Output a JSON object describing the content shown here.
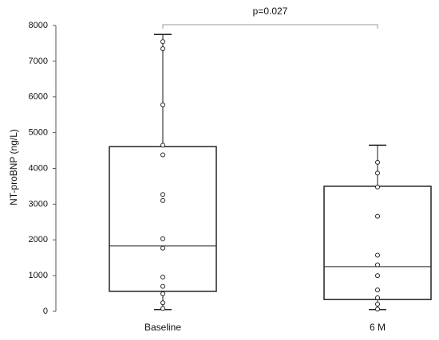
{
  "chart_data": {
    "type": "box",
    "y_label": "NT-proBNP (ng/L)",
    "annotation": "p=0.027",
    "categories": [
      "Baseline",
      "6 M"
    ],
    "ylim": [
      0,
      8000
    ],
    "yticks": [
      0,
      1000,
      2000,
      3000,
      4000,
      5000,
      6000,
      7000,
      8000
    ],
    "boxes": [
      {
        "whisker_low": 50,
        "q1": 560,
        "median": 1830,
        "q3": 4610,
        "whisker_high": 7750,
        "points": [
          7550,
          7350,
          5780,
          4650,
          4380,
          3270,
          3100,
          2030,
          1770,
          960,
          700,
          490,
          240,
          80
        ]
      },
      {
        "whisker_low": 50,
        "q1": 330,
        "median": 1250,
        "q3": 3500,
        "whisker_high": 4650,
        "points": [
          4170,
          3870,
          3480,
          2660,
          1570,
          1300,
          1000,
          600,
          380,
          200,
          60
        ]
      }
    ],
    "color": "#222222",
    "point_fill": "#ffffff"
  }
}
